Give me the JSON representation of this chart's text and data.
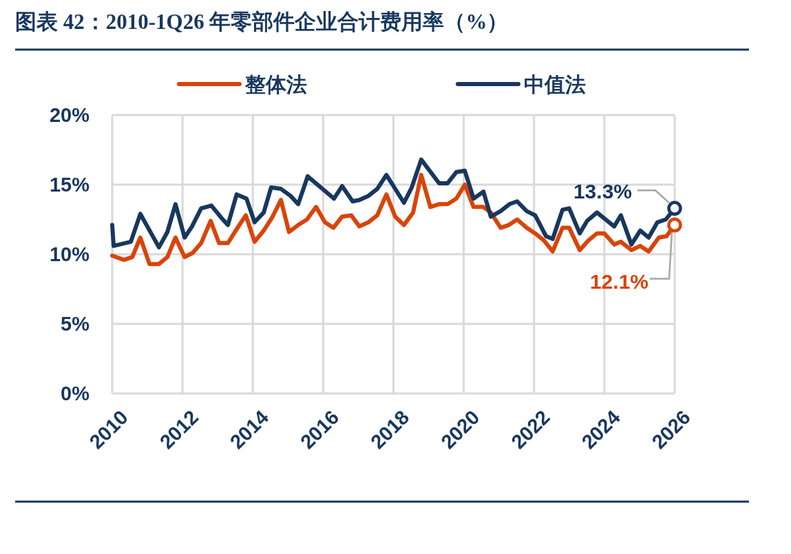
{
  "chart_data": {
    "type": "line",
    "title": "图表 42：2010-1Q26 年零部件企业合计费用率（%）",
    "xlim": [
      2010,
      2026
    ],
    "xticks": [
      2010,
      2012,
      2014,
      2016,
      2018,
      2020,
      2022,
      2024,
      2026
    ],
    "ylim": [
      0,
      20
    ],
    "yticks": [
      {
        "value": 0,
        "label": "0%"
      },
      {
        "value": 5,
        "label": "5%"
      },
      {
        "value": 10,
        "label": "10%"
      },
      {
        "value": 15,
        "label": "15%"
      },
      {
        "value": 20,
        "label": "20%"
      }
    ],
    "grid": true,
    "legend": "top",
    "line_style": "solid",
    "marker": "none",
    "series": [
      {
        "name": "整体法",
        "color": "#d9440a",
        "x": [
          2010.0,
          2010.33,
          2010.57,
          2010.8,
          2011.06,
          2011.33,
          2011.57,
          2011.8,
          2012.06,
          2012.29,
          2012.53,
          2012.8,
          2013.04,
          2013.29,
          2013.54,
          2013.8,
          2014.05,
          2014.31,
          2014.54,
          2014.8,
          2015.03,
          2015.29,
          2015.54,
          2015.8,
          2016.05,
          2016.29,
          2016.54,
          2016.8,
          2017.03,
          2017.29,
          2017.54,
          2017.8,
          2018.05,
          2018.3,
          2018.56,
          2018.79,
          2019.05,
          2019.3,
          2019.54,
          2019.79,
          2020.03,
          2020.28,
          2020.56,
          2020.77,
          2021.05,
          2021.28,
          2021.52,
          2021.79,
          2022.03,
          2022.28,
          2022.53,
          2022.81,
          2023.0,
          2023.3,
          2023.55,
          2023.79,
          2024.0,
          2024.28,
          2024.47,
          2024.77,
          2025.02,
          2025.26,
          2025.55,
          2025.77,
          2026.0
        ],
        "values": [
          9.9,
          9.6,
          9.8,
          11.2,
          9.3,
          9.3,
          9.8,
          11.2,
          9.8,
          10.1,
          10.8,
          12.4,
          10.8,
          10.8,
          11.8,
          12.8,
          10.9,
          11.7,
          12.6,
          13.9,
          11.6,
          12.1,
          12.5,
          13.4,
          12.3,
          11.9,
          12.7,
          12.8,
          12.0,
          12.3,
          12.8,
          14.3,
          12.7,
          12.1,
          13.0,
          15.7,
          13.4,
          13.6,
          13.6,
          14.0,
          15.0,
          13.4,
          13.4,
          13.0,
          11.9,
          12.1,
          12.5,
          11.9,
          11.5,
          11.0,
          10.2,
          11.9,
          11.9,
          10.3,
          11.0,
          11.5,
          11.5,
          10.7,
          10.9,
          10.3,
          10.6,
          10.2,
          11.2,
          11.3,
          12.1
        ]
      },
      {
        "name": "中值法",
        "color": "#17375e",
        "x": [
          2010.0,
          2010.04,
          2010.53,
          2010.8,
          2011.33,
          2011.57,
          2011.8,
          2012.06,
          2012.27,
          2012.53,
          2012.82,
          2013.11,
          2013.29,
          2013.54,
          2013.82,
          2014.05,
          2014.31,
          2014.52,
          2014.8,
          2015.07,
          2015.29,
          2015.56,
          2016.31,
          2016.54,
          2016.84,
          2017.03,
          2017.29,
          2017.54,
          2017.8,
          2018.3,
          2018.52,
          2018.79,
          2019.3,
          2019.54,
          2019.79,
          2020.03,
          2020.28,
          2020.56,
          2020.77,
          2021.05,
          2021.3,
          2021.52,
          2021.79,
          2022.03,
          2022.34,
          2022.53,
          2022.81,
          2023.0,
          2023.3,
          2023.51,
          2023.79,
          2024.28,
          2024.47,
          2024.77,
          2025.02,
          2025.26,
          2025.51,
          2025.75,
          2026.0
        ],
        "values": [
          12.1,
          10.6,
          10.9,
          12.9,
          10.5,
          11.6,
          13.6,
          11.2,
          12.0,
          13.3,
          13.5,
          12.6,
          12.1,
          14.3,
          14.0,
          12.3,
          13.0,
          14.8,
          14.7,
          14.2,
          13.6,
          15.6,
          14.0,
          14.9,
          13.8,
          13.9,
          14.2,
          14.7,
          15.7,
          13.7,
          14.8,
          16.8,
          15.1,
          15.1,
          15.9,
          16.0,
          14.0,
          14.5,
          12.7,
          13.1,
          13.6,
          13.8,
          13.1,
          12.8,
          11.3,
          11.1,
          13.2,
          13.3,
          11.5,
          12.4,
          13.0,
          12.0,
          12.8,
          10.7,
          11.7,
          11.2,
          12.3,
          12.5,
          13.3
        ]
      }
    ],
    "annotations": [
      {
        "text": "13.3%",
        "x": 2026,
        "y": 13.3
      },
      {
        "text": "12.1%",
        "x": 2026,
        "y": 12.1
      }
    ]
  }
}
